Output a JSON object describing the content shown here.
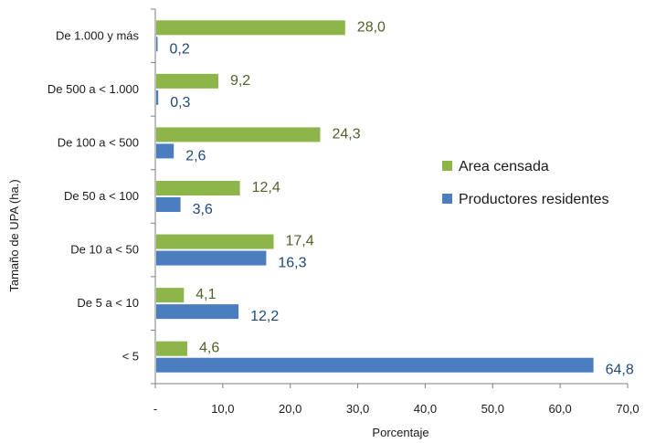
{
  "chart_data": {
    "type": "bar",
    "orientation": "horizontal",
    "categories": [
      "De 1.000 y más",
      "De 500 a < 1.000",
      "De 100 a < 500",
      "De 50 a < 100",
      "De 10 a < 50",
      "De 5 a < 10",
      "< 5"
    ],
    "series": [
      {
        "name": "Area censada",
        "color": "#8db54a",
        "values": [
          28.0,
          9.2,
          24.3,
          12.4,
          17.4,
          4.1,
          4.6
        ],
        "labels": [
          "28,0",
          "9,2",
          "24,3",
          "12,4",
          "17,4",
          "4,1",
          "4,6"
        ]
      },
      {
        "name": "Productores residentes",
        "color": "#4a7ebf",
        "values": [
          0.2,
          0.3,
          2.6,
          3.6,
          16.3,
          12.2,
          64.8
        ],
        "labels": [
          "0,2",
          "0,3",
          "2,6",
          "3,6",
          "16,3",
          "12,2",
          "64,8"
        ]
      }
    ],
    "xlim": [
      0,
      70
    ],
    "x_ticks": [
      0,
      10,
      20,
      30,
      40,
      50,
      60,
      70
    ],
    "x_tick_labels": [
      "-",
      "10,0",
      "20,0",
      "30,0",
      "40,0",
      "50,0",
      "60,0",
      "70,0"
    ],
    "xlabel": "Porcentaje",
    "ylabel": "Tamaño de UPA (ha.)",
    "title": "",
    "grid": false,
    "legend_position": "right",
    "label_colors": {
      "Area censada": "#4f6228",
      "Productores residentes": "#1f497d"
    },
    "axis_color": "#7f7f7f"
  }
}
